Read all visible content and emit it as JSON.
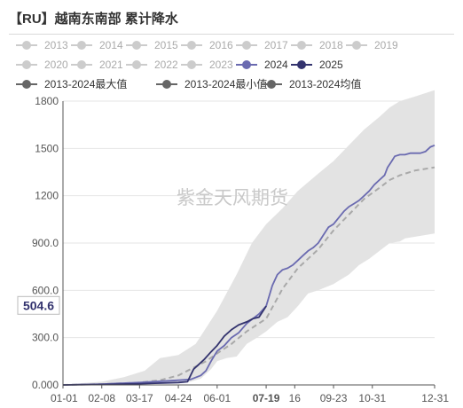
{
  "title": "【RU】越南东南部 累计降水",
  "watermark": "紫金天风期货",
  "colors": {
    "band": "#e3e3e3",
    "line2024": "#6a6ab0",
    "line2025": "#33336e",
    "avg": "#a9a9a9",
    "legend_inactive": "#cccccc",
    "legend_text_inactive": "#aaaaaa",
    "legend_text_active": "#333333",
    "legend_minmax": "#666666",
    "highlight_label": "#33336e"
  },
  "legend": {
    "rows": [
      [
        {
          "label": "2013",
          "active": false
        },
        {
          "label": "2014",
          "active": false
        },
        {
          "label": "2015",
          "active": false
        },
        {
          "label": "2016",
          "active": false
        },
        {
          "label": "2017",
          "active": false
        },
        {
          "label": "2018",
          "active": false
        },
        {
          "label": "2019",
          "active": false
        }
      ],
      [
        {
          "label": "2020",
          "active": false
        },
        {
          "label": "2021",
          "active": false
        },
        {
          "label": "2022",
          "active": false
        },
        {
          "label": "2023",
          "active": false
        },
        {
          "label": "2024",
          "active": true,
          "color": "#6a6ab0"
        },
        {
          "label": "2025",
          "active": true,
          "color": "#33336e"
        }
      ],
      [
        {
          "label": "2013-2024最大值",
          "active": true,
          "color": "#666666"
        },
        {
          "label": "2013-2024最小值",
          "active": true,
          "color": "#666666"
        },
        {
          "label": "2013-2024均值",
          "active": true,
          "color": "#666666"
        }
      ]
    ]
  },
  "chart_data": {
    "type": "area",
    "title": "【RU】越南东南部 累计降水",
    "x_tick_labels": [
      "01-01",
      "02-08",
      "03-17",
      "04-24",
      "06-01",
      "07-19",
      "16",
      "09-23",
      "10-31",
      "12-31"
    ],
    "x_tick_days": [
      0,
      38,
      75,
      113,
      151,
      199,
      227,
      265,
      303,
      364
    ],
    "highlighted_x_label": "07-19",
    "ylim": [
      0,
      1800
    ],
    "y_ticks": [
      0,
      300,
      600,
      900,
      1200,
      1500,
      1800
    ],
    "y_tick_labels": [
      "0.000",
      "300.0",
      "600.0",
      "900.0",
      "1200",
      "1500",
      "1800"
    ],
    "y_highlight": {
      "value": 504.6,
      "label": "504.6"
    },
    "grid": true,
    "legend_position": "top",
    "series": [
      {
        "name": "2013-2024最大值",
        "x": [
          0,
          15,
          38,
          60,
          80,
          95,
          113,
          130,
          151,
          170,
          185,
          199,
          215,
          230,
          250,
          265,
          280,
          295,
          310,
          320,
          330,
          345,
          364
        ],
        "y": [
          0,
          10,
          20,
          50,
          90,
          170,
          190,
          260,
          470,
          700,
          900,
          1020,
          1120,
          1230,
          1340,
          1420,
          1520,
          1620,
          1700,
          1760,
          1800,
          1830,
          1870
        ]
      },
      {
        "name": "2013-2024最小值",
        "x": [
          0,
          38,
          75,
          100,
          113,
          125,
          135,
          145,
          151,
          160,
          170,
          180,
          190,
          199,
          210,
          220,
          230,
          240,
          250,
          265,
          280,
          290,
          300,
          310,
          320,
          330,
          335,
          345,
          364
        ],
        "y": [
          0,
          2,
          5,
          8,
          12,
          20,
          40,
          100,
          150,
          170,
          180,
          260,
          300,
          340,
          400,
          430,
          500,
          580,
          600,
          640,
          700,
          760,
          800,
          850,
          900,
          910,
          930,
          940,
          960
        ]
      },
      {
        "name": "2013-2024均值",
        "x": [
          0,
          38,
          75,
          95,
          113,
          125,
          140,
          151,
          165,
          180,
          199,
          215,
          230,
          250,
          265,
          280,
          295,
          310,
          320,
          330,
          345,
          364
        ],
        "y": [
          0,
          5,
          15,
          30,
          60,
          100,
          150,
          200,
          260,
          340,
          420,
          610,
          740,
          860,
          980,
          1080,
          1180,
          1250,
          1300,
          1330,
          1360,
          1380
        ]
      },
      {
        "name": "2024",
        "x": [
          0,
          38,
          75,
          113,
          125,
          135,
          140,
          145,
          151,
          158,
          165,
          172,
          180,
          186,
          192,
          199,
          205,
          210,
          215,
          220,
          225,
          230,
          235,
          240,
          245,
          250,
          255,
          260,
          265,
          270,
          275,
          280,
          285,
          290,
          295,
          300,
          305,
          310,
          315,
          318,
          322,
          325,
          330,
          335,
          340,
          345,
          350,
          355,
          360,
          364
        ],
        "y": [
          0,
          5,
          15,
          30,
          35,
          60,
          90,
          150,
          215,
          250,
          300,
          330,
          390,
          420,
          450,
          500,
          630,
          700,
          730,
          740,
          760,
          790,
          820,
          850,
          870,
          900,
          950,
          1000,
          1020,
          1060,
          1100,
          1130,
          1150,
          1170,
          1200,
          1230,
          1270,
          1300,
          1330,
          1380,
          1420,
          1450,
          1460,
          1460,
          1470,
          1470,
          1470,
          1480,
          1510,
          1520
        ]
      },
      {
        "name": "2025",
        "x": [
          0,
          38,
          75,
          113,
          122,
          128,
          133,
          138,
          145,
          151,
          158,
          165,
          172,
          180,
          186,
          192,
          199
        ],
        "y": [
          0,
          3,
          8,
          15,
          20,
          100,
          130,
          160,
          210,
          250,
          310,
          350,
          380,
          400,
          420,
          430,
          500
        ]
      }
    ]
  }
}
